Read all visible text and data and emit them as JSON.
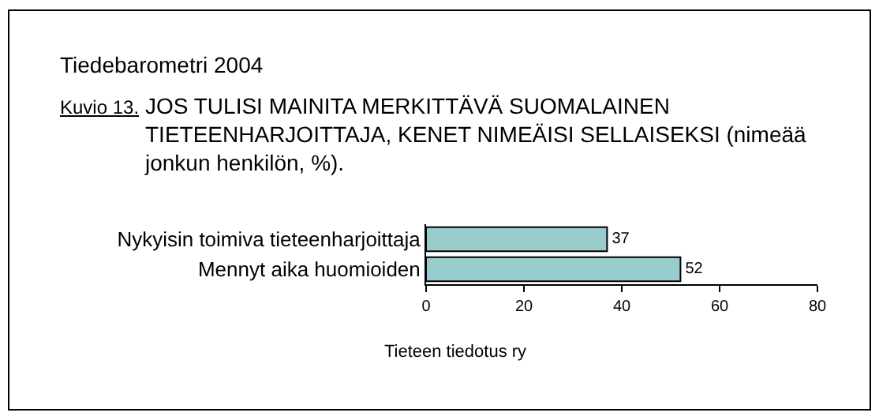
{
  "chart_data": {
    "type": "bar",
    "orientation": "horizontal",
    "title": "Tiedebarometri 2004",
    "subtitle": "JOS TULISI MAINITA MERKITTÄVÄ SUOMALAINEN TIETEENHARJOITTAJA, KENET NIMEÄISI SELLAISEKSI (nimeää jonkun henkilön, %).",
    "annotations": [
      "Kuvio 13.",
      "Tieteen tiedotus ry"
    ],
    "categories": [
      "Nykyisin toimiva tieteenharjoittaja",
      "Mennyt aika huomioiden"
    ],
    "values": [
      37,
      52
    ],
    "color": "#99cccc",
    "data_labels": true,
    "xlim": [
      0,
      80
    ],
    "xticks": [
      0,
      20,
      40,
      60,
      80
    ]
  }
}
